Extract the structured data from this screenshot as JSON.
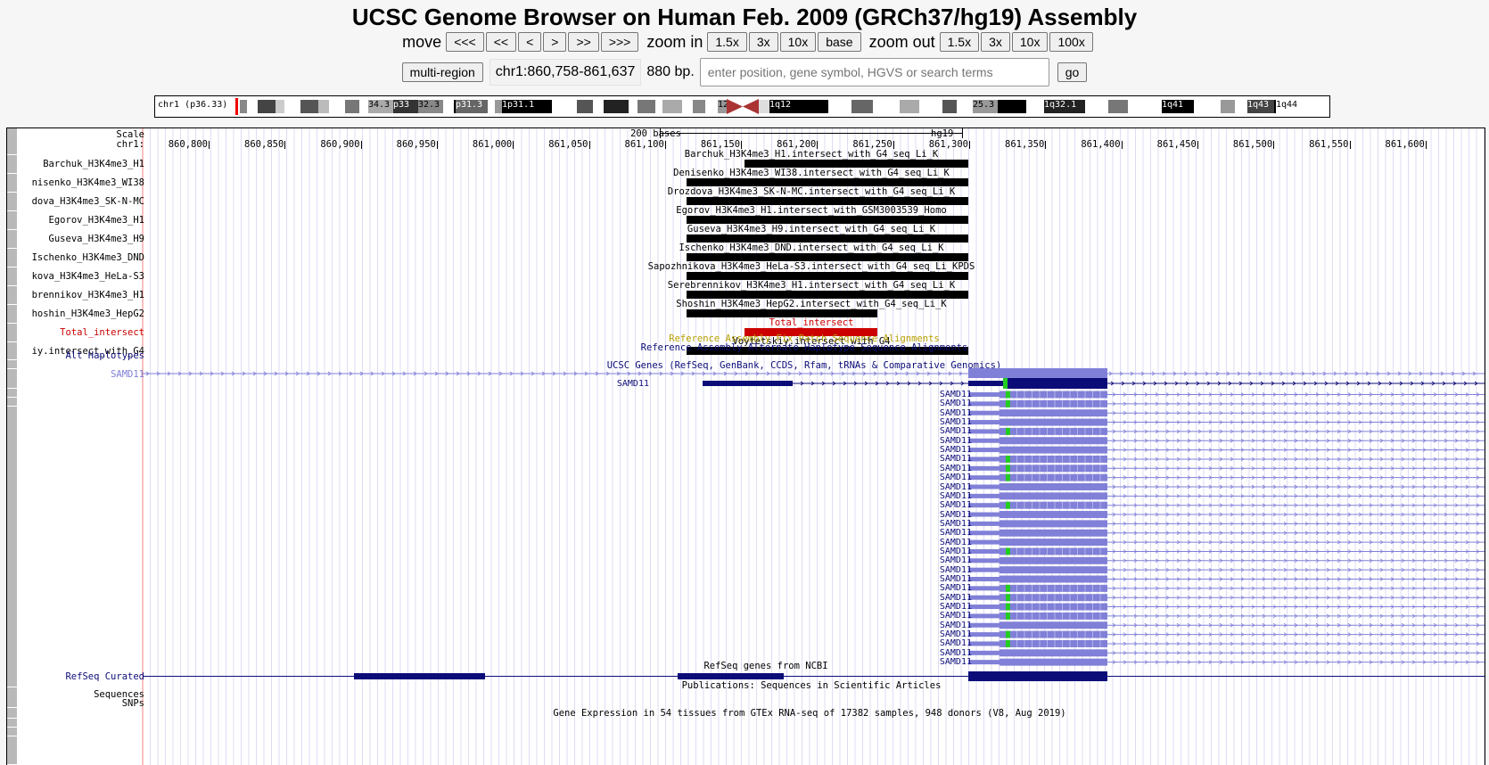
{
  "header": {
    "title": "UCSC Genome Browser on Human Feb. 2009 (GRCh37/hg19) Assembly"
  },
  "nav": {
    "move_label": "move",
    "move_buttons": [
      "<<<",
      "<<",
      "<",
      ">",
      ">>",
      ">>>"
    ],
    "zoom_in_label": "zoom in",
    "zoom_in_buttons": [
      "1.5x",
      "3x",
      "10x",
      "base"
    ],
    "zoom_out_label": "zoom out",
    "zoom_out_buttons": [
      "1.5x",
      "3x",
      "10x",
      "100x"
    ],
    "multi_region_label": "multi-region",
    "position": "chr1:860,758-861,637",
    "size": "880 bp.",
    "search_placeholder": "enter position, gene symbol, HGVS or search terms",
    "go_label": "go"
  },
  "ideogram": {
    "chrom_label": "chr1 (p36.33)",
    "band_labels": [
      "34.3",
      "p33",
      "32.3",
      "p31.3",
      "1p31.1",
      "12",
      "1q12",
      "25.3",
      "1q32.1",
      "1q41",
      "1q43",
      "1q44"
    ]
  },
  "ruler": {
    "scale_label": "Scale",
    "chrom_label": "chr1:",
    "scale_text": "200 bases",
    "assembly": "hg19",
    "ticks": [
      "860,800",
      "860,850",
      "860,900",
      "860,950",
      "861,000",
      "861,050",
      "861,100",
      "861,150",
      "861,200",
      "861,250",
      "861,300",
      "861,350",
      "861,400",
      "861,450",
      "861,500",
      "861,550",
      "861,600"
    ]
  },
  "tracks": [
    {
      "label": "Barchuk_H3K4me3_H1",
      "center": "Barchuk_H3K4me3_H1.intersect_with_G4_seq_Li_K",
      "color": "#000000"
    },
    {
      "label": "nisenko_H3K4me3_WI38",
      "center": "Denisenko_H3K4me3_WI38.intersect_with_G4_seq_Li_K",
      "color": "#000000"
    },
    {
      "label": "dova_H3K4me3_SK-N-MC",
      "center": "Drozdova_H3K4me3_SK-N-MC.intersect_with_G4_seq_Li_K",
      "color": "#000000"
    },
    {
      "label": "Egorov_H3K4me3_H1",
      "center": "Egorov_H3K4me3_H1.intersect_with_GSM3003539_Homo",
      "color": "#000000"
    },
    {
      "label": "Guseva_H3K4me3_H9",
      "center": "Guseva_H3K4me3_H9.intersect_with_G4_seq_Li_K",
      "color": "#000000"
    },
    {
      "label": "Ischenko_H3K4me3_DND",
      "center": "Ischenko_H3K4me3_DND.intersect_with_G4_seq_Li_K",
      "color": "#000000"
    },
    {
      "label": "kova_H3K4me3_HeLa-S3",
      "center": "Sapozhnikova_H3K4me3_HeLa-S3.intersect_with_G4_seq_Li_KPDS",
      "color": "#000000"
    },
    {
      "label": "brennikov_H3K4me3_H1",
      "center": "Serebrennikov_H3K4me3_H1.intersect_with_G4_seq_Li_K",
      "color": "#000000"
    },
    {
      "label": "hoshin_H3K4me3_HepG2",
      "center": "Shoshin_H3K4me3_HepG2.intersect_with_G4_seq_Li_K",
      "color": "#000000"
    },
    {
      "label": "Total_intersect",
      "center": "Total_intersect",
      "color": "#cc0000"
    },
    {
      "label": "iy.intersect_with_G4",
      "center": "Voytetskiy.intersect_with_G4",
      "color": "#000000"
    }
  ],
  "fix_patch_text": "Reference Assembly Fix Patch Sequence Alignments",
  "alt_hap_text": "Reference Assembly Alternate Haplotype Sequence Alignments",
  "alt_hap_label": "Alt Haplotypes",
  "ucsc_genes_text": "UCSC Genes (RefSeq, GenBank, CCDS, Rfam, tRNAs & Comparative Genomics)",
  "gene_symbol": "SAMD11",
  "refseq_label": "RefSeq Curated",
  "refseq_text": "RefSeq genes from NCBI",
  "publications_text": "Publications: Sequences in Scientific Articles",
  "sequences_label": "Sequences",
  "snps_label": "SNPs",
  "gtex_text": "Gene Expression in 54 tissues from GTEx RNA-seq of 17382 samples, 948 donors (V8, Aug 2019)",
  "colors": {
    "gene_dark": "#0c0c78",
    "gene_light": "#8080d8",
    "utr_green": "#22cc22",
    "total_red": "#cc0000",
    "fix_patch": "#b8a000"
  }
}
